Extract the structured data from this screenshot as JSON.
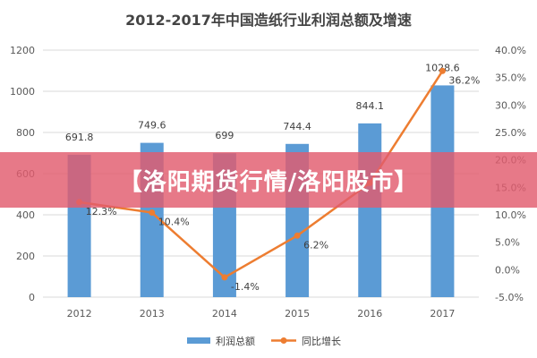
{
  "colors": {
    "bar": "#5B9BD5",
    "line": "#ED7D31",
    "grid": "#D9D9D9",
    "banner": "#E25C6E"
  },
  "banner": {
    "text": "【洛阳期货行情/洛阳股市】"
  },
  "chart_data": {
    "type": "bar",
    "title": "2012-2017年中国造纸行业利润总额及增速",
    "categories": [
      "2012",
      "2013",
      "2014",
      "2015",
      "2016",
      "2017"
    ],
    "series": [
      {
        "name": "利润总额",
        "type": "bar",
        "axis": "left",
        "values": [
          691.8,
          749.6,
          699,
          744.4,
          844.1,
          1028.6
        ],
        "labels": [
          "691.8",
          "749.6",
          "699",
          "744.4",
          "844.1",
          "1028.6"
        ]
      },
      {
        "name": "同比增长",
        "type": "line",
        "axis": "right",
        "values": [
          12.3,
          10.4,
          -1.4,
          6.2,
          15.8,
          36.2
        ],
        "labels": [
          "12.3%",
          "10.4%",
          "-1.4%",
          "6.2%",
          "",
          "36.2%"
        ]
      }
    ],
    "y_left": {
      "ylim": [
        0,
        1200
      ],
      "ticks": [
        "0",
        "200",
        "400",
        "600",
        "800",
        "1000",
        "1200"
      ]
    },
    "y_right": {
      "ylim": [
        -5,
        40
      ],
      "ticks": [
        "-5.0%",
        "0.0%",
        "5.0%",
        "10.0%",
        "15.0%",
        "20.0%",
        "25.0%",
        "30.0%",
        "35.0%",
        "40.0%"
      ]
    },
    "grid": true,
    "legend": "bottom"
  }
}
